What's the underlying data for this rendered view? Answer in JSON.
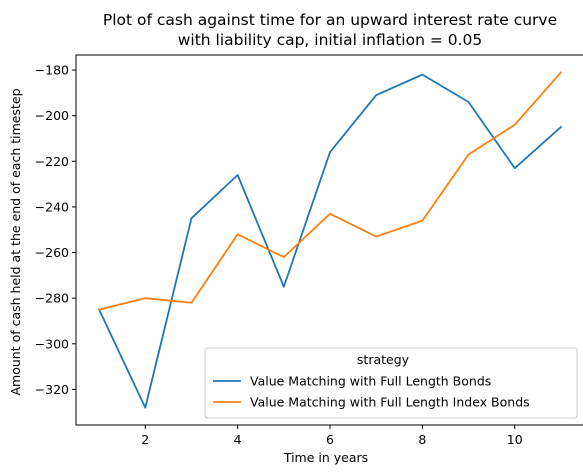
{
  "chart_data": {
    "type": "line",
    "title_lines": [
      "Plot of cash against time for an upward interest rate curve",
      "with liability cap, initial inflation = 0.05"
    ],
    "xlabel": "Time in years",
    "ylabel": "Amount of cash held at the end of each timestep",
    "xlim": [
      0.5,
      11.5
    ],
    "ylim": [
      -335.6,
      -173.4
    ],
    "xticks": [
      2,
      4,
      6,
      8,
      10
    ],
    "yticks": [
      -320,
      -300,
      -280,
      -260,
      -240,
      -220,
      -200,
      -180
    ],
    "grid": false,
    "legend": {
      "title": "strategy",
      "placement": "lower-right"
    },
    "x": [
      1,
      2,
      3,
      4,
      5,
      6,
      7,
      8,
      9,
      10,
      11
    ],
    "series": [
      {
        "name": "Value Matching with Full Length Bonds",
        "color": "#1f77b4",
        "values": [
          -285,
          -328,
          -245,
          -226,
          -275,
          -216,
          -191,
          -182,
          -194,
          -223,
          -205
        ]
      },
      {
        "name": "Value Matching with Full Length Index Bonds",
        "color": "#ff7f0e",
        "values": [
          -285,
          -280,
          -282,
          -252,
          -262,
          -243,
          -253,
          -246,
          -217,
          -204,
          -181
        ]
      }
    ]
  }
}
